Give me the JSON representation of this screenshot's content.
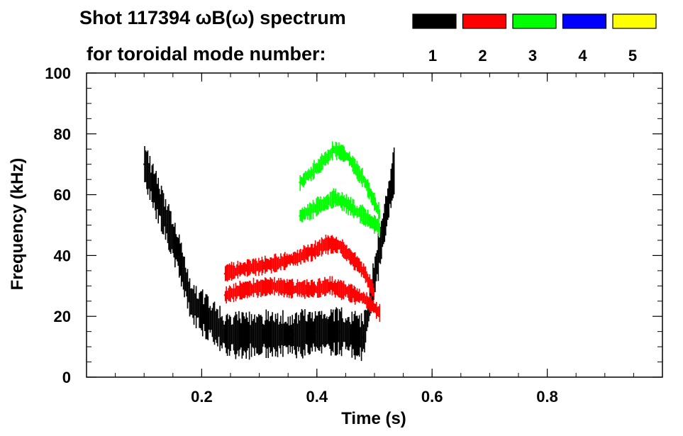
{
  "chart_data": {
    "type": "heatmap",
    "title_line1": "Shot 117394 ωB(ω) spectrum",
    "title_line2": "for toroidal mode number:",
    "xlabel": "Time (s)",
    "ylabel": "Frequency (kHz)",
    "xlim": [
      0.0,
      1.0
    ],
    "ylim": [
      0,
      100
    ],
    "x_ticks": [
      0.2,
      0.4,
      0.6,
      0.8
    ],
    "x_tick_labels": [
      "0.2",
      "0.4",
      "0.6",
      "0.8"
    ],
    "y_ticks": [
      0,
      20,
      40,
      60,
      80,
      100
    ],
    "y_tick_labels": [
      "0",
      "20",
      "40",
      "60",
      "80",
      "100"
    ],
    "legend": {
      "placement": "top-right",
      "entries": [
        {
          "label": "1",
          "color": "#000000"
        },
        {
          "label": "2",
          "color": "#ff0000"
        },
        {
          "label": "3",
          "color": "#00ff00"
        },
        {
          "label": "4",
          "color": "#0000ff"
        },
        {
          "label": "5",
          "color": "#ffff00"
        }
      ]
    },
    "series": [
      {
        "name": "1",
        "color": "#000000",
        "x": [
          0.1,
          0.12,
          0.14,
          0.16,
          0.18,
          0.24,
          0.28,
          0.32,
          0.36,
          0.4,
          0.44,
          0.48,
          0.535
        ],
        "y": [
          70,
          60,
          50,
          40,
          25,
          14,
          14,
          14,
          14,
          15,
          15,
          13,
          70
        ]
      },
      {
        "name": "2",
        "color": "#ff0000",
        "x": [
          0.24,
          0.28,
          0.32,
          0.36,
          0.4,
          0.42,
          0.44,
          0.48,
          0.5
        ],
        "y": [
          34,
          36,
          37,
          39,
          42,
          44,
          43,
          35,
          27
        ]
      },
      {
        "name": "2",
        "color": "#ff0000",
        "x": [
          0.24,
          0.28,
          0.32,
          0.36,
          0.4,
          0.42,
          0.44,
          0.48,
          0.51
        ],
        "y": [
          27,
          29,
          30,
          29,
          29,
          30,
          29,
          26,
          21
        ]
      },
      {
        "name": "3",
        "color": "#00ff00",
        "x": [
          0.37,
          0.4,
          0.42,
          0.43,
          0.45,
          0.48,
          0.51
        ],
        "y": [
          64,
          69,
          73,
          75,
          73,
          65,
          53
        ]
      },
      {
        "name": "3",
        "color": "#00ff00",
        "x": [
          0.37,
          0.4,
          0.42,
          0.43,
          0.45,
          0.48,
          0.51
        ],
        "y": [
          53,
          56,
          58,
          59,
          57,
          53,
          49
        ]
      }
    ]
  }
}
